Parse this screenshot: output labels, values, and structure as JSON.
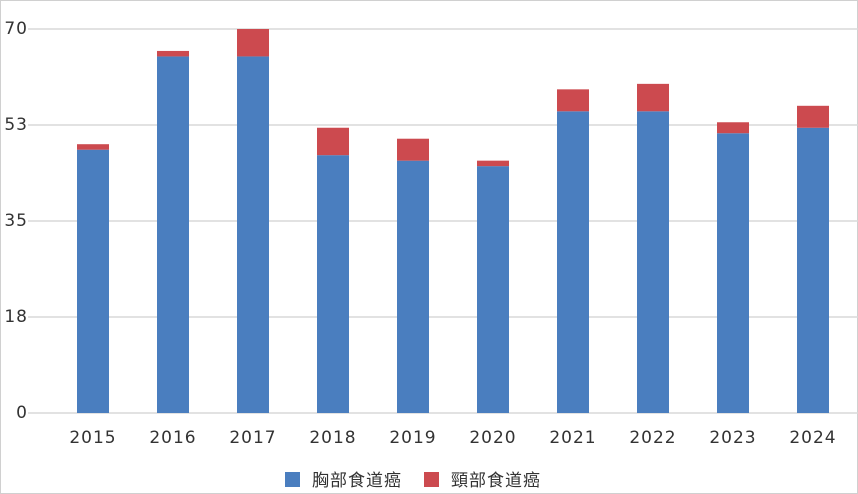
{
  "chart_data": {
    "type": "stacked_bar",
    "categories": [
      "2015",
      "2016",
      "2017",
      "2018",
      "2019",
      "2020",
      "2021",
      "2022",
      "2023",
      "2024"
    ],
    "series": [
      {
        "name": "胸部食道癌",
        "color": "#4a7ebf",
        "values": [
          48,
          65,
          65,
          47,
          46,
          45,
          55,
          55,
          51,
          52
        ]
      },
      {
        "name": "頸部食道癌",
        "color": "#cc4a4f",
        "values": [
          1,
          1,
          5,
          5,
          4,
          1,
          4,
          5,
          2,
          4
        ]
      }
    ],
    "ylim": [
      0,
      70
    ],
    "yticks": [
      0,
      {
        "value": 17.5,
        "label": "18"
      },
      35,
      {
        "value": 52.5,
        "label": "53"
      },
      70
    ],
    "grid": true,
    "legend": "bottom"
  }
}
